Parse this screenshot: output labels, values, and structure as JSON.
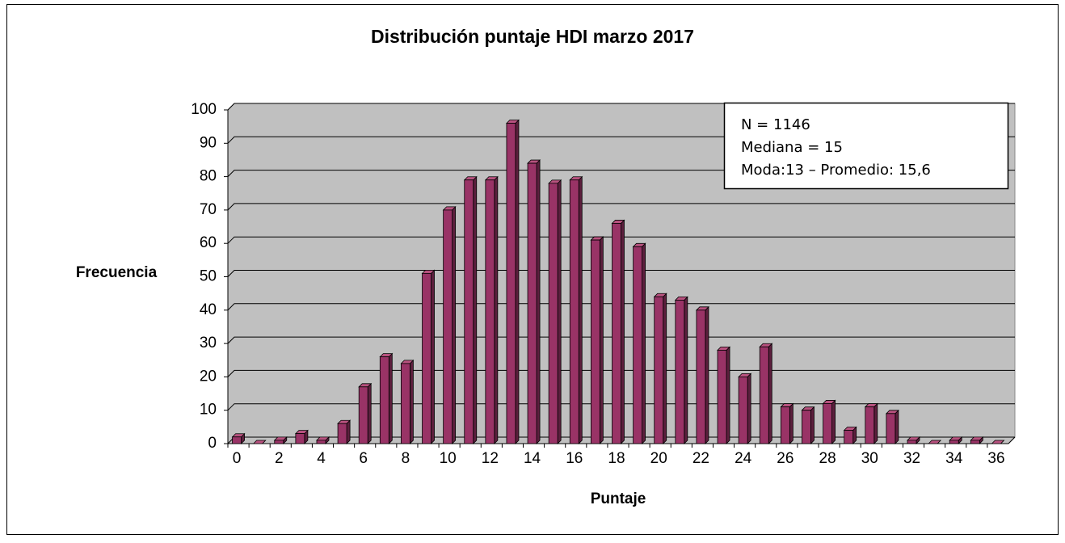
{
  "chart_data": {
    "type": "bar",
    "title": "Distribución puntaje HDI marzo 2017",
    "x_label": "Puntaje",
    "y_label": "Frecuencia",
    "categories": [
      0,
      null,
      2,
      null,
      4,
      null,
      6,
      null,
      8,
      null,
      10,
      null,
      12,
      null,
      14,
      null,
      16,
      null,
      18,
      null,
      20,
      null,
      22,
      null,
      24,
      null,
      26,
      null,
      28,
      null,
      30,
      null,
      32,
      null,
      34,
      null,
      36
    ],
    "values": [
      2,
      0,
      1,
      3,
      1,
      6,
      17,
      26,
      24,
      51,
      70,
      79,
      79,
      96,
      84,
      78,
      79,
      61,
      66,
      59,
      44,
      43,
      40,
      28,
      20,
      29,
      11,
      10,
      12,
      4,
      11,
      9,
      1,
      0,
      1,
      1,
      0
    ],
    "color": "#993366",
    "ylim": [
      0,
      100
    ],
    "yticks": [
      0,
      10,
      20,
      30,
      40,
      50,
      60,
      70,
      80,
      90,
      100
    ],
    "grid": true,
    "annotations": [
      "N = 1146",
      "Mediana = 15",
      "Moda:13 – Promedio: 15,6"
    ]
  }
}
